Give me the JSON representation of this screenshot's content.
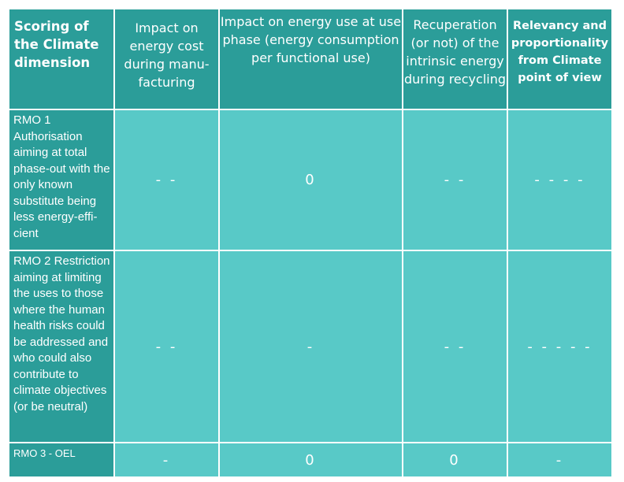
{
  "table": {
    "headers": [
      "Scoring of the Climate dimension",
      "Impact on energy cost during manu-facturing",
      "Impact on energy use at use phase (energy consumption per functional use)",
      "Recuperation (or not) of the intrinsic energy during recycling",
      "Relevancy and proportionality from Climate point of view"
    ],
    "rows": [
      {
        "label": "RMO 1 Authorisation aiming at total phase-out with the only known substitute being less energy-effi-cient",
        "values": [
          "- -",
          "0",
          "- -",
          "- - - -"
        ]
      },
      {
        "label": "RMO 2 Restriction aiming at limiting the uses to those where the human health risks could be addressed and who could also contribute to climate objectives (or be neutral)",
        "values": [
          "- -",
          "-",
          "- -",
          "- - - - -"
        ]
      },
      {
        "label": "RMO 3 - OEL",
        "values": [
          "-",
          "0",
          "0",
          "-"
        ]
      }
    ]
  },
  "colors": {
    "header_bg": "#2b9d99",
    "cell_bg": "#58c9c7",
    "text": "#ffffff"
  }
}
